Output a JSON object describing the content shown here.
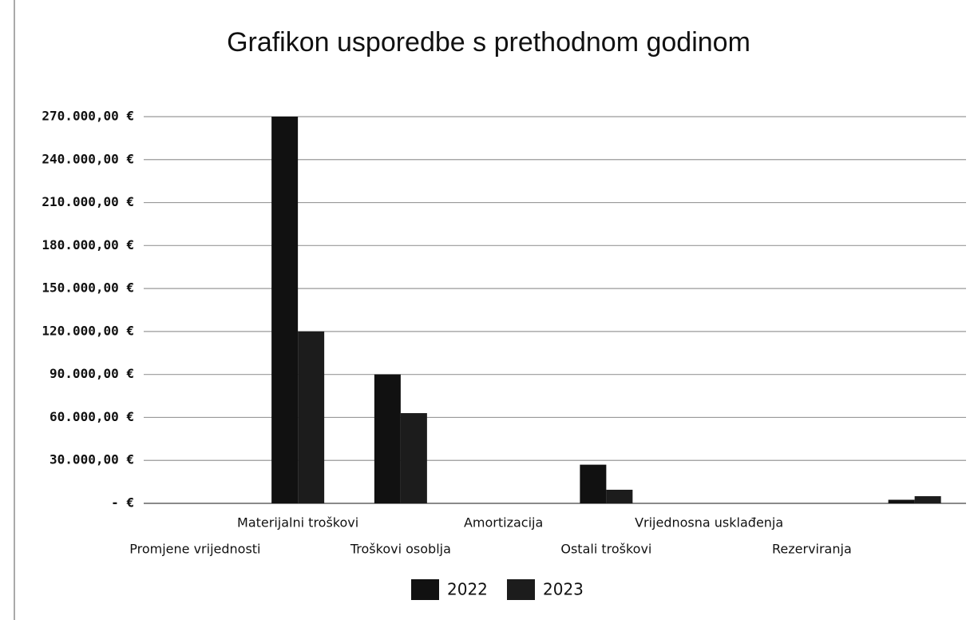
{
  "chart_data": {
    "type": "bar",
    "title": "Grafikon usporedbe s prethodnom godinom",
    "categories": [
      "Promjene vrijednosti",
      "Materijalni troškovi",
      "Troškovi osoblja",
      "Amortizacija",
      "Ostali troškovi",
      "Vrijednosna usklađenja",
      "Rezerviranja",
      null
    ],
    "series": [
      {
        "name": "2022",
        "color": "#111111",
        "values": [
          0,
          270000,
          90000,
          0,
          27000,
          0,
          0,
          2500
        ]
      },
      {
        "name": "2023",
        "color": "#1c1c1c",
        "values": [
          0,
          120000,
          63000,
          0,
          9500,
          0,
          0,
          5000
        ]
      }
    ],
    "ylim": [
      0,
      270000
    ],
    "yticks": [
      {
        "value": 0,
        "label": "-   €"
      },
      {
        "value": 30000,
        "label": "30.000,00 €"
      },
      {
        "value": 60000,
        "label": "60.000,00 €"
      },
      {
        "value": 90000,
        "label": "90.000,00 €"
      },
      {
        "value": 120000,
        "label": "120.000,00 €"
      },
      {
        "value": 150000,
        "label": "150.000,00 €"
      },
      {
        "value": 180000,
        "label": "180.000,00 €"
      },
      {
        "value": 210000,
        "label": "210.000,00 €"
      },
      {
        "value": 240000,
        "label": "240.000,00 €"
      },
      {
        "value": 270000,
        "label": "270.000,00 €"
      }
    ],
    "grid": true,
    "legend": "bottom"
  }
}
